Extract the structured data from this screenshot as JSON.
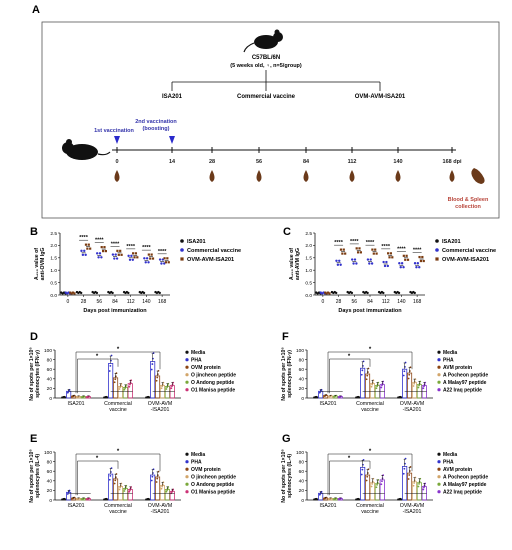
{
  "panel_letters": [
    "A",
    "B",
    "C",
    "D",
    "E",
    "F",
    "G"
  ],
  "schematic": {
    "mouse_strain": "C57BL/6N",
    "mouse_info": "(5 weeks old, ♀, n=5/group)",
    "groups": [
      "ISA201",
      "Commercial vaccine",
      "OVM-AVM-ISA201"
    ],
    "first_vaccination": "1st vaccination",
    "second_vaccination": "2nd vaccination",
    "boosting": "(boosting)",
    "days": [
      "0",
      "14",
      "28",
      "56",
      "84",
      "112",
      "140",
      "168 dpi"
    ],
    "collection": [
      "Blood & Spleen",
      "collection"
    ]
  },
  "colors": {
    "ISA201": "#111111",
    "Commercial": "#3333cc",
    "OVM": "#7a3b10",
    "Media": "#111111",
    "PHA": "#3333cc",
    "protein": "#8b4513",
    "pep1": "#d2a56a",
    "pep2": "#7aa83a",
    "pep3": "#cc3377",
    "pep3_F": "#8833cc"
  },
  "chart_data": [
    {
      "panel": "B",
      "type": "scatter",
      "ylabel": [
        "A₄₅₀ value of",
        "anti-OVM IgG"
      ],
      "xlabel": "Days post immunization",
      "x": [
        "0",
        "28",
        "56",
        "84",
        "112",
        "140",
        "168"
      ],
      "yticks": [
        "0.0",
        "0.5",
        "1.0",
        "1.5",
        "2.0",
        "2.5"
      ],
      "ylim": [
        0,
        2.5
      ],
      "significance": "****",
      "series": [
        {
          "name": "ISA201",
          "values": [
            0.08,
            0.1,
            0.1,
            0.1,
            0.1,
            0.1,
            0.1
          ]
        },
        {
          "name": "Commercial vaccine",
          "values": [
            0.08,
            1.7,
            1.6,
            1.55,
            1.5,
            1.4,
            1.35
          ]
        },
        {
          "name": "OVM-AVM-ISA201",
          "values": [
            0.08,
            1.95,
            1.85,
            1.7,
            1.6,
            1.55,
            1.4
          ]
        }
      ]
    },
    {
      "panel": "C",
      "type": "scatter",
      "ylabel": [
        "A₄₅₀ value of",
        "anti-AVM IgG"
      ],
      "xlabel": "Days post immunization",
      "x": [
        "0",
        "28",
        "56",
        "84",
        "112",
        "140",
        "168"
      ],
      "yticks": [
        "0.0",
        "0.5",
        "1.0",
        "1.5",
        "2.0",
        "2.5"
      ],
      "ylim": [
        0,
        2.5
      ],
      "significance": "****",
      "series": [
        {
          "name": "ISA201",
          "values": [
            0.08,
            0.1,
            0.1,
            0.1,
            0.1,
            0.1,
            0.1
          ]
        },
        {
          "name": "Commercial vaccine",
          "values": [
            0.08,
            1.3,
            1.35,
            1.35,
            1.25,
            1.2,
            1.2
          ]
        },
        {
          "name": "OVM-AVM-ISA201",
          "values": [
            0.08,
            1.75,
            1.8,
            1.75,
            1.6,
            1.5,
            1.45
          ]
        }
      ]
    },
    {
      "panel": "D",
      "type": "bar",
      "ylabel": [
        "No of spots per 1×10⁶",
        "splenocytes (IFN-γ)"
      ],
      "categories": [
        "ISA201",
        "Commercial vaccine",
        "OVM-AVM -ISA201"
      ],
      "yticks": [
        "0",
        "20",
        "40",
        "60",
        "80",
        "100"
      ],
      "ylim": [
        0,
        100
      ],
      "significance": "*",
      "series": [
        {
          "name": "Media",
          "values": [
            2,
            2,
            2
          ]
        },
        {
          "name": "PHA",
          "values": [
            14,
            72,
            76
          ]
        },
        {
          "name": "OVM protein",
          "values": [
            4,
            42,
            46
          ]
        },
        {
          "name": "O jincheon peptide",
          "values": [
            3,
            24,
            26
          ]
        },
        {
          "name": "O Andong peptide",
          "values": [
            3,
            22,
            24
          ]
        },
        {
          "name": "O1 Manisa peptide",
          "values": [
            3,
            30,
            26
          ]
        }
      ]
    },
    {
      "panel": "E",
      "type": "bar",
      "ylabel": [
        "No of spots per 1×10⁶",
        "splenocytes (IL-4)"
      ],
      "categories": [
        "ISA201",
        "Commercial vaccine",
        "OVM-AVM -ISA201"
      ],
      "yticks": [
        "0",
        "20",
        "40",
        "60",
        "80",
        "100"
      ],
      "ylim": [
        0,
        100
      ],
      "significance": "*",
      "series": [
        {
          "name": "Media",
          "values": [
            2,
            2,
            2
          ]
        },
        {
          "name": "PHA",
          "values": [
            16,
            54,
            52
          ]
        },
        {
          "name": "OVM protein",
          "values": [
            4,
            44,
            48
          ]
        },
        {
          "name": "O jincheon peptide",
          "values": [
            3,
            28,
            30
          ]
        },
        {
          "name": "O Andong peptide",
          "values": [
            3,
            24,
            22
          ]
        },
        {
          "name": "O1 Manisa peptide",
          "values": [
            3,
            22,
            18
          ]
        }
      ]
    },
    {
      "panel": "F",
      "type": "bar",
      "ylabel": [
        "No of spots per 1×10⁶",
        "splenocytes (IFN-γ)"
      ],
      "categories": [
        "ISA201",
        "Commercial vaccine",
        "OVM-AVM -ISA201"
      ],
      "yticks": [
        "0",
        "20",
        "40",
        "60",
        "80",
        "100"
      ],
      "ylim": [
        0,
        100
      ],
      "significance": "*",
      "series": [
        {
          "name": "Media",
          "values": [
            2,
            2,
            2
          ]
        },
        {
          "name": "PHA",
          "values": [
            14,
            62,
            60
          ]
        },
        {
          "name": "AVM protein",
          "values": [
            5,
            50,
            52
          ]
        },
        {
          "name": "A Pocheon peptide",
          "values": [
            4,
            30,
            32
          ]
        },
        {
          "name": "A Malay97 peptide",
          "values": [
            4,
            26,
            28
          ]
        },
        {
          "name": "A22 Iraq peptide",
          "values": [
            3,
            28,
            26
          ]
        }
      ]
    },
    {
      "panel": "G",
      "type": "bar",
      "ylabel": [
        "No of spots per 1×10⁶",
        "splenocytes (IL-4)"
      ],
      "categories": [
        "ISA201",
        "Commercial vaccine",
        "OVM-AVM -ISA201"
      ],
      "yticks": [
        "0",
        "20",
        "40",
        "60",
        "80",
        "100"
      ],
      "ylim": [
        0,
        100
      ],
      "significance": "*",
      "series": [
        {
          "name": "Media",
          "values": [
            2,
            2,
            2
          ]
        },
        {
          "name": "PHA",
          "values": [
            14,
            68,
            70
          ]
        },
        {
          "name": "AVM protein",
          "values": [
            4,
            52,
            56
          ]
        },
        {
          "name": "A Pocheon peptide",
          "values": [
            3,
            36,
            38
          ]
        },
        {
          "name": "A Malay97 peptide",
          "values": [
            3,
            34,
            36
          ]
        },
        {
          "name": "A22 Iraq peptide",
          "values": [
            3,
            42,
            28
          ]
        }
      ]
    }
  ]
}
